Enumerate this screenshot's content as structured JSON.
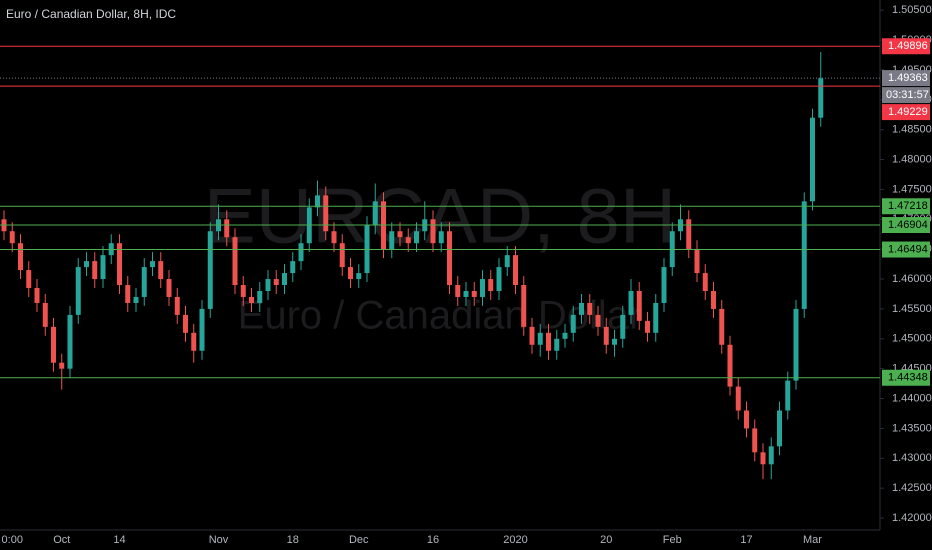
{
  "chart_data": {
    "type": "candlestick",
    "title": "Euro / Canadian Dollar, 8H, IDC",
    "watermark": [
      "EURCAD, 8H",
      "Euro / Canadian Dollar"
    ],
    "up_color": "#26a69a",
    "down_color": "#ef5350",
    "categories": [
      null,
      "0:00",
      null,
      null,
      null,
      null,
      null,
      "Oct",
      null,
      null,
      null,
      null,
      null,
      null,
      "14",
      null,
      null,
      null,
      null,
      null,
      null,
      null,
      null,
      null,
      null,
      null,
      "Nov",
      null,
      null,
      null,
      null,
      null,
      null,
      null,
      null,
      "18",
      null,
      null,
      null,
      null,
      null,
      null,
      null,
      "Dec",
      null,
      null,
      null,
      null,
      null,
      null,
      null,
      null,
      "16",
      null,
      null,
      null,
      null,
      null,
      null,
      null,
      null,
      null,
      "2020",
      null,
      null,
      null,
      null,
      null,
      null,
      null,
      null,
      null,
      null,
      "20",
      null,
      null,
      null,
      null,
      null,
      null,
      null,
      "Feb",
      null,
      null,
      null,
      null,
      null,
      null,
      null,
      null,
      "17",
      null,
      null,
      null,
      null,
      null,
      null,
      null,
      "Mar",
      null
    ],
    "open": [
      1.47,
      1.468,
      1.466,
      1.4615,
      1.4585,
      1.456,
      1.452,
      1.446,
      1.445,
      1.454,
      1.462,
      1.463,
      1.46,
      1.464,
      1.466,
      1.459,
      1.456,
      1.457,
      1.462,
      1.463,
      1.46,
      1.457,
      1.454,
      1.451,
      1.448,
      1.455,
      1.468,
      1.47,
      1.467,
      1.459,
      1.457,
      1.456,
      1.458,
      1.46,
      1.459,
      1.461,
      1.463,
      1.466,
      1.472,
      1.474,
      1.468,
      1.466,
      1.462,
      1.46,
      1.461,
      1.469,
      1.473,
      1.465,
      1.468,
      1.467,
      1.466,
      1.468,
      1.47,
      1.466,
      1.468,
      1.459,
      1.457,
      1.458,
      1.457,
      1.46,
      1.458,
      1.462,
      1.464,
      1.459,
      1.452,
      1.449,
      1.451,
      1.448,
      1.45,
      1.451,
      1.454,
      1.456,
      1.454,
      1.452,
      1.449,
      1.45,
      1.454,
      1.458,
      1.453,
      1.451,
      1.456,
      1.462,
      1.468,
      1.47,
      1.465,
      1.461,
      1.458,
      1.455,
      1.449,
      1.442,
      1.438,
      1.435,
      1.431,
      1.429,
      1.432,
      1.438,
      1.443,
      1.455,
      1.473,
      1.487
    ],
    "high": [
      1.4715,
      1.4695,
      1.4675,
      1.463,
      1.46,
      1.4575,
      1.4535,
      1.4475,
      1.4555,
      1.4635,
      1.4645,
      1.4645,
      1.4655,
      1.4675,
      1.4675,
      1.4605,
      1.4585,
      1.4635,
      1.4645,
      1.4645,
      1.4615,
      1.4585,
      1.4555,
      1.4525,
      1.4565,
      1.4695,
      1.4725,
      1.4715,
      1.4685,
      1.4605,
      1.4585,
      1.4595,
      1.4615,
      1.4615,
      1.4625,
      1.4645,
      1.4675,
      1.4735,
      1.4765,
      1.4755,
      1.4695,
      1.4675,
      1.4635,
      1.4625,
      1.4705,
      1.476,
      1.4745,
      1.4695,
      1.4695,
      1.4685,
      1.4695,
      1.473,
      1.4715,
      1.4695,
      1.4695,
      1.4605,
      1.4595,
      1.4595,
      1.4615,
      1.4615,
      1.4635,
      1.4655,
      1.4655,
      1.4605,
      1.4535,
      1.4525,
      1.4525,
      1.4515,
      1.4525,
      1.4555,
      1.4575,
      1.4575,
      1.4555,
      1.4535,
      1.4515,
      1.4555,
      1.46,
      1.4595,
      1.4545,
      1.4575,
      1.4635,
      1.4695,
      1.4725,
      1.4715,
      1.4665,
      1.4625,
      1.4595,
      1.4565,
      1.4505,
      1.4435,
      1.4395,
      1.4365,
      1.4325,
      1.4335,
      1.4395,
      1.4445,
      1.4565,
      1.4745,
      1.4885,
      1.498
    ],
    "low": [
      1.4665,
      1.4645,
      1.46,
      1.457,
      1.4545,
      1.4505,
      1.4445,
      1.4415,
      1.4435,
      1.4525,
      1.4605,
      1.4585,
      1.4585,
      1.4625,
      1.4575,
      1.4545,
      1.4545,
      1.4555,
      1.4605,
      1.4585,
      1.4555,
      1.4525,
      1.4495,
      1.446,
      1.4465,
      1.4535,
      1.4665,
      1.4655,
      1.4575,
      1.4555,
      1.4545,
      1.4545,
      1.4565,
      1.4575,
      1.4575,
      1.4595,
      1.4615,
      1.4645,
      1.4705,
      1.4665,
      1.4645,
      1.4605,
      1.4585,
      1.4585,
      1.4595,
      1.4675,
      1.4635,
      1.4635,
      1.4655,
      1.4645,
      1.4645,
      1.4665,
      1.4645,
      1.4645,
      1.4575,
      1.4555,
      1.4555,
      1.4555,
      1.4555,
      1.4565,
      1.4565,
      1.4605,
      1.4575,
      1.4505,
      1.4475,
      1.447,
      1.4465,
      1.4465,
      1.4485,
      1.4495,
      1.4525,
      1.4525,
      1.4505,
      1.4475,
      1.447,
      1.4485,
      1.4525,
      1.4515,
      1.4495,
      1.4495,
      1.4545,
      1.4605,
      1.4665,
      1.4635,
      1.4595,
      1.4565,
      1.4535,
      1.4475,
      1.4405,
      1.4365,
      1.4335,
      1.4295,
      1.4265,
      1.4265,
      1.4305,
      1.4365,
      1.4415,
      1.4535,
      1.4715,
      1.4855
    ],
    "close": [
      1.468,
      1.466,
      1.4615,
      1.4585,
      1.456,
      1.452,
      1.446,
      1.445,
      1.454,
      1.462,
      1.463,
      1.46,
      1.464,
      1.466,
      1.459,
      1.456,
      1.457,
      1.462,
      1.463,
      1.46,
      1.457,
      1.454,
      1.451,
      1.448,
      1.455,
      1.468,
      1.47,
      1.467,
      1.459,
      1.457,
      1.456,
      1.458,
      1.46,
      1.459,
      1.461,
      1.463,
      1.466,
      1.472,
      1.474,
      1.468,
      1.466,
      1.462,
      1.46,
      1.461,
      1.469,
      1.473,
      1.465,
      1.468,
      1.467,
      1.466,
      1.468,
      1.47,
      1.466,
      1.468,
      1.459,
      1.457,
      1.458,
      1.457,
      1.46,
      1.458,
      1.462,
      1.464,
      1.459,
      1.452,
      1.449,
      1.451,
      1.448,
      1.45,
      1.451,
      1.454,
      1.456,
      1.454,
      1.452,
      1.449,
      1.45,
      1.454,
      1.458,
      1.453,
      1.451,
      1.456,
      1.462,
      1.468,
      1.47,
      1.465,
      1.461,
      1.458,
      1.455,
      1.449,
      1.442,
      1.438,
      1.435,
      1.431,
      1.429,
      1.432,
      1.438,
      1.443,
      1.455,
      1.473,
      1.487,
      1.4936
    ],
    "levels": [
      {
        "value": 1.49896,
        "color": "#f23645",
        "style": "solid"
      },
      {
        "value": 1.49363,
        "color": "#787b86",
        "style": "dotted",
        "countdown": "03:31:57"
      },
      {
        "value": 1.49229,
        "color": "#f23645",
        "style": "solid"
      },
      {
        "value": 1.47218,
        "color": "#4caf50",
        "style": "solid"
      },
      {
        "value": 1.46904,
        "color": "#4caf50",
        "style": "solid"
      },
      {
        "value": 1.46494,
        "color": "#4caf50",
        "style": "solid"
      },
      {
        "value": 1.44348,
        "color": "#4caf50",
        "style": "solid"
      }
    ],
    "ylim": [
      1.418,
      1.5067
    ],
    "yticks": [
      {
        "value": 1.42,
        "label": "1.42000"
      },
      {
        "value": 1.425,
        "label": "1.42500"
      },
      {
        "value": 1.43,
        "label": "1.43000"
      },
      {
        "value": 1.435,
        "label": "1.43500"
      },
      {
        "value": 1.44,
        "label": "1.44000"
      },
      {
        "value": 1.445,
        "label": "1.44500"
      },
      {
        "value": 1.45,
        "label": "1.45000"
      },
      {
        "value": 1.455,
        "label": "1.45500"
      },
      {
        "value": 1.46,
        "label": "1.46000"
      },
      {
        "value": 1.465,
        "label": "1.46500"
      },
      {
        "value": 1.47,
        "label": "1.47000"
      },
      {
        "value": 1.475,
        "label": "1.47500"
      },
      {
        "value": 1.48,
        "label": "1.48000"
      },
      {
        "value": 1.485,
        "label": "1.48500"
      },
      {
        "value": 1.49,
        "label": "1.49000"
      },
      {
        "value": 1.495,
        "label": "1.49500"
      },
      {
        "value": 1.5,
        "label": "1.50000"
      },
      {
        "value": 1.505,
        "label": "1.50500"
      }
    ],
    "grid": false
  }
}
